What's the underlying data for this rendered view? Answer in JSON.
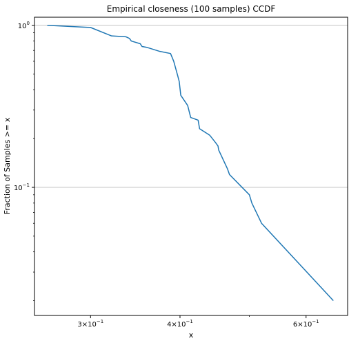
{
  "chart_data": {
    "type": "line",
    "title": "Empirical closeness (100 samples) CCDF",
    "xlabel": "x",
    "ylabel": "Fraction of Samples >= x",
    "xscale": "log",
    "yscale": "log",
    "xlim": [
      0.2505,
      0.6858
    ],
    "ylim": [
      0.0162,
      1.122
    ],
    "x_ticks": [
      {
        "value": 0.3,
        "base": "3",
        "exp": "−1"
      },
      {
        "value": 0.4,
        "base": "4",
        "exp": "−1"
      },
      {
        "value": 0.6,
        "base": "6",
        "exp": "−1"
      }
    ],
    "y_ticks": [
      {
        "value": 1.0,
        "exp": "0"
      },
      {
        "value": 0.1,
        "exp": "−1"
      }
    ],
    "grid": "y-major",
    "color": "#1f77b4",
    "series": [
      {
        "x": [
          0.261,
          0.3,
          0.321,
          0.336,
          0.34,
          0.342,
          0.352,
          0.354,
          0.36,
          0.375,
          0.388,
          0.392,
          0.397,
          0.399,
          0.401,
          0.41,
          0.414,
          0.424,
          0.426,
          0.44,
          0.448,
          0.452,
          0.453,
          0.466,
          0.469,
          0.5,
          0.504,
          0.52,
          0.655
        ],
        "y": [
          1.0,
          0.97,
          0.86,
          0.85,
          0.83,
          0.8,
          0.77,
          0.74,
          0.73,
          0.69,
          0.67,
          0.6,
          0.49,
          0.45,
          0.37,
          0.32,
          0.27,
          0.26,
          0.23,
          0.21,
          0.19,
          0.18,
          0.17,
          0.13,
          0.12,
          0.09,
          0.08,
          0.06,
          0.02
        ]
      }
    ]
  }
}
